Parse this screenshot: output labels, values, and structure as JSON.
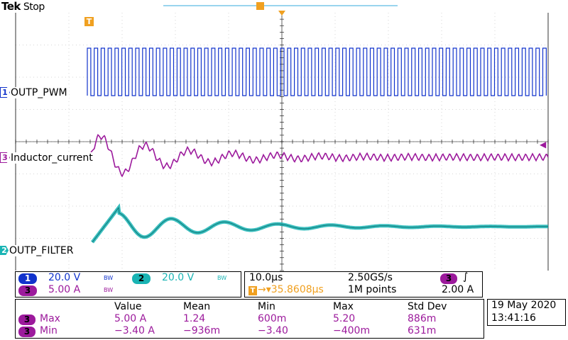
{
  "header": {
    "brand": "Tek",
    "status": "Stop"
  },
  "colors": {
    "ch1": "#1133cc",
    "ch2": "#19b4b4",
    "ch3": "#9c1a9c",
    "trigger": "#f0a020",
    "grid": "#d6d6d6",
    "marker_line": "#33aadd"
  },
  "channels": [
    {
      "number": "1",
      "name": "OUTP_PWM",
      "scale": "20.0 V",
      "bw": "BW"
    },
    {
      "number": "2",
      "name": "OUTP_FILTER",
      "scale": "20.0 V",
      "bw": "BW"
    },
    {
      "number": "3",
      "name": "Inductor_current",
      "scale": "5.00 A",
      "bw": "BW"
    }
  ],
  "trigger_marker": "T",
  "timebase": {
    "time_per_div": "10.0µs",
    "sample_rate": "2.50GS/s",
    "trigger_delay": "→▾35.8608µs",
    "record_length": "1M points",
    "trigger_source": "3",
    "trigger_slope": "∫",
    "trigger_level": "2.00 A"
  },
  "measurements": {
    "headers": [
      "Value",
      "Mean",
      "Min",
      "Max",
      "Std Dev"
    ],
    "rows": [
      {
        "channel": "3",
        "name": "Max",
        "value": "5.00 A",
        "mean": "1.24",
        "min": "600m",
        "max": "5.20",
        "stddev": "886m"
      },
      {
        "channel": "3",
        "name": "Min",
        "value": "−3.40 A",
        "mean": "−936m",
        "min": "−3.40",
        "max": "−400m",
        "stddev": "631m"
      }
    ]
  },
  "datetime": {
    "date": "19 May 2020",
    "time": "13:41:16"
  }
}
